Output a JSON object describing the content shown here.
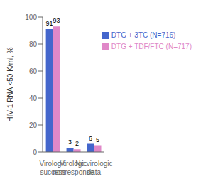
{
  "chart_data": {
    "type": "bar",
    "categories": [
      "Virologic\nsuccess",
      "Virologic\nnonresponse",
      "No virologic\ndata"
    ],
    "series": [
      {
        "name": "DTG + 3TC (N=716)",
        "color": "#4466cc",
        "values": [
          91,
          3,
          6
        ]
      },
      {
        "name": "DTG + TDF/FTC (N=717)",
        "color": "#e088c8",
        "values": [
          93,
          2,
          5
        ]
      }
    ],
    "ylabel": "HIV-1 RNA <50 K/ml, %",
    "ylim": [
      0,
      100
    ],
    "yticks": [
      0,
      20,
      40,
      60,
      80,
      100
    ],
    "data_labels": true,
    "grid": false,
    "legend": "upper right"
  }
}
